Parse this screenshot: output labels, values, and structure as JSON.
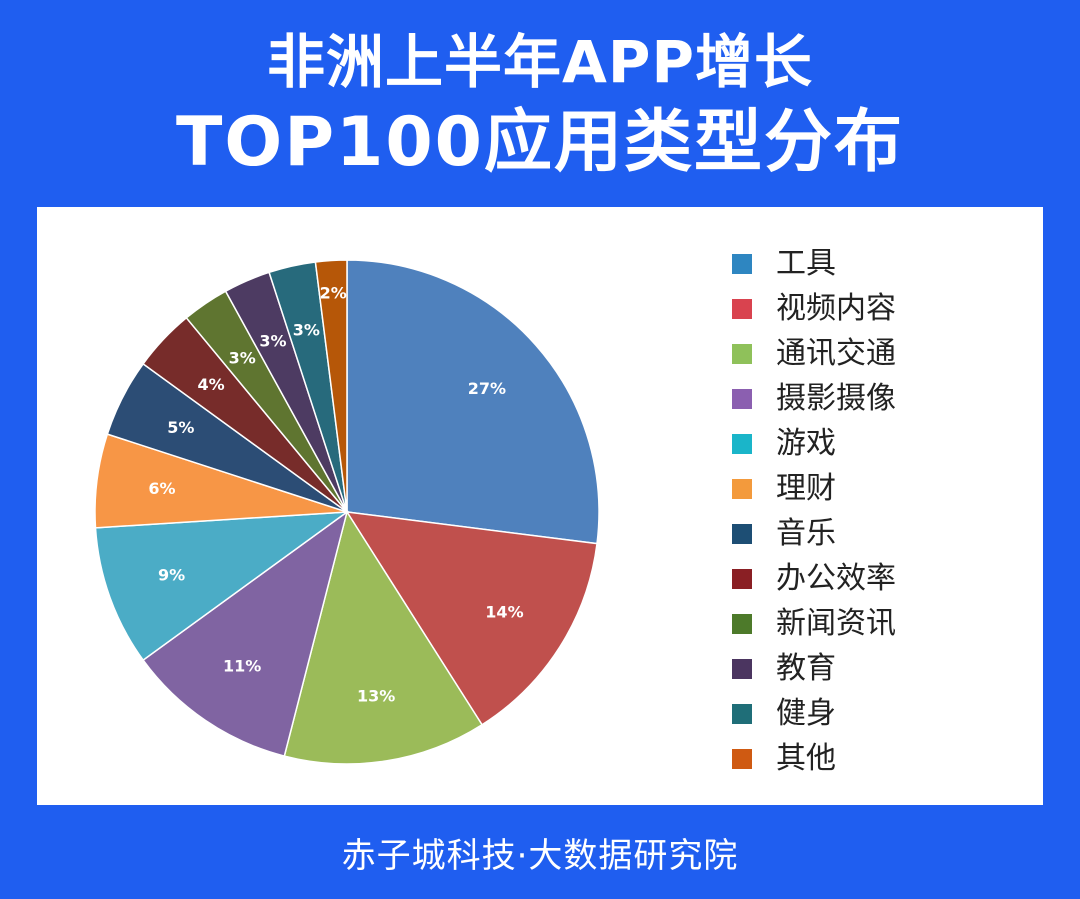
{
  "header": {
    "title_line1": "非洲上半年APP增长",
    "title_line2": "TOP100应用类型分布"
  },
  "footer": {
    "credit": "赤子城科技·大数据研究院"
  },
  "chart_data": {
    "type": "pie",
    "title": "非洲上半年APP增长 TOP100应用类型分布",
    "legend_position": "right",
    "slices": [
      {
        "label": "工具",
        "value": 27,
        "display": "27%",
        "color": "#4f81bd",
        "legend_color": "#2e86c1"
      },
      {
        "label": "视频内容",
        "value": 14,
        "display": "14%",
        "color": "#c0504d",
        "legend_color": "#d9434f"
      },
      {
        "label": "通讯交通",
        "value": 13,
        "display": "13%",
        "color": "#9bbb59",
        "legend_color": "#8fc15a"
      },
      {
        "label": "摄影摄像",
        "value": 11,
        "display": "11%",
        "color": "#8064a2",
        "legend_color": "#8b5fb0"
      },
      {
        "label": "游戏",
        "value": 9,
        "display": "9%",
        "color": "#4bacc6",
        "legend_color": "#1ab5c9"
      },
      {
        "label": "理财",
        "value": 6,
        "display": "6%",
        "color": "#f79646",
        "legend_color": "#f39a3c"
      },
      {
        "label": "音乐",
        "value": 5,
        "display": "5%",
        "color": "#2c4d75",
        "legend_color": "#1d4e74"
      },
      {
        "label": "办公效率",
        "value": 4,
        "display": "4%",
        "color": "#772c2a",
        "legend_color": "#8a1f24"
      },
      {
        "label": "新闻资讯",
        "value": 3,
        "display": "3%",
        "color": "#5f7530",
        "legend_color": "#4d7a2a"
      },
      {
        "label": "教育",
        "value": 3,
        "display": "3%",
        "color": "#4d3b62",
        "legend_color": "#4b3560"
      },
      {
        "label": "健身",
        "value": 3,
        "display": "3%",
        "color": "#276a7c",
        "legend_color": "#1f6e78"
      },
      {
        "label": "其他",
        "value": 2,
        "display": "2%",
        "color": "#b65708",
        "legend_color": "#cf5a12"
      }
    ]
  }
}
